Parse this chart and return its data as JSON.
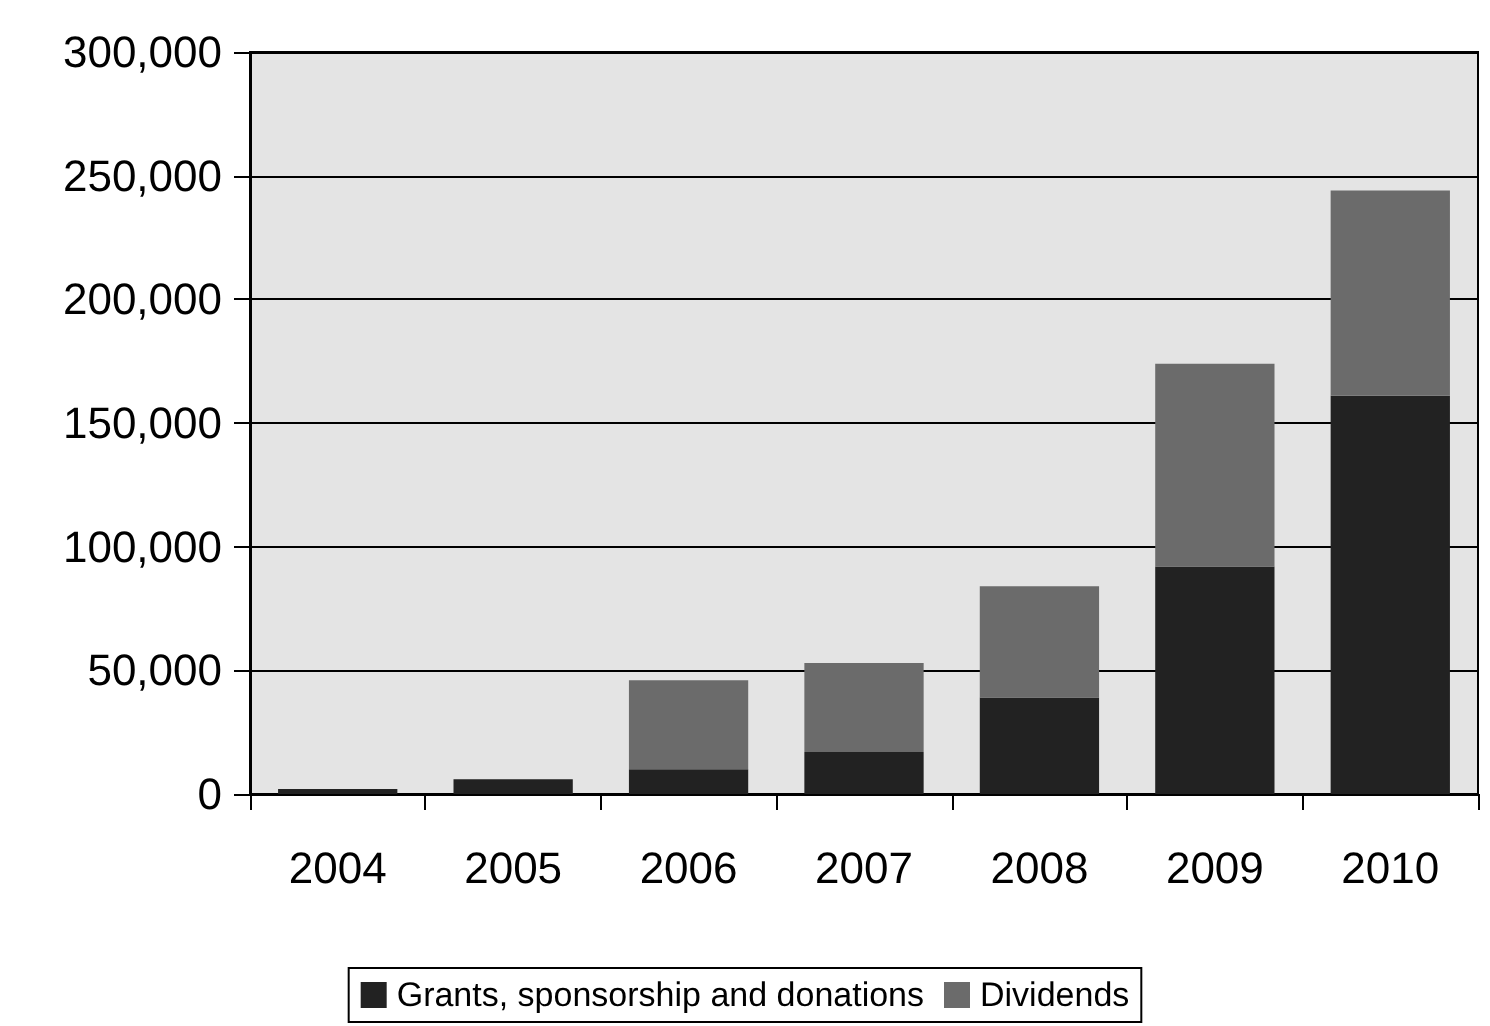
{
  "chart_data": {
    "type": "bar",
    "stacked": true,
    "categories": [
      "2004",
      "2005",
      "2006",
      "2007",
      "2008",
      "2009",
      "2010"
    ],
    "series": [
      {
        "name": "Grants, sponsorship and donations",
        "color": "#222222",
        "values": [
          2000,
          6000,
          10000,
          17000,
          39000,
          92000,
          161000
        ]
      },
      {
        "name": "Dividends",
        "color": "#6b6b6b",
        "values": [
          0,
          0,
          36000,
          36000,
          45000,
          82000,
          83000
        ]
      }
    ],
    "ylim": [
      0,
      300000
    ],
    "yticks": [
      0,
      {
        "value": 50000,
        "label": "50,000"
      },
      {
        "value": 100000,
        "label": "100,000"
      },
      {
        "value": 150000,
        "label": "150,000"
      },
      {
        "value": 200000,
        "label": "200,000"
      },
      {
        "value": 250000,
        "label": "250,000"
      },
      {
        "value": 300000,
        "label": "300,000"
      }
    ],
    "grid": "y",
    "legend": "bottom"
  }
}
